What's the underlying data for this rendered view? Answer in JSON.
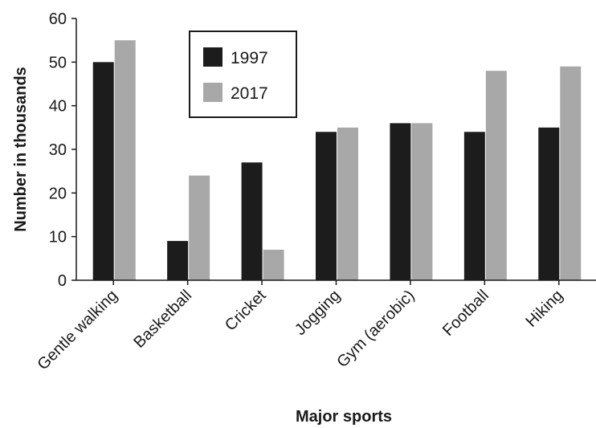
{
  "chart_data": {
    "type": "bar",
    "title": "",
    "xlabel": "Major sports",
    "ylabel": "Number in thousands",
    "categories": [
      "Gentle walking",
      "Basketball",
      "Cricket",
      "Jogging",
      "Gym (aerobic)",
      "Football",
      "Hiking"
    ],
    "series": [
      {
        "name": "1997",
        "color": "#1c1c1c",
        "values": [
          50,
          9,
          27,
          34,
          36,
          34,
          35
        ]
      },
      {
        "name": "2017",
        "color": "#a8a8a8",
        "values": [
          55,
          24,
          7,
          35,
          36,
          48,
          49
        ]
      }
    ],
    "ylim": [
      0,
      60
    ],
    "yticks": [
      "0",
      "10",
      "20",
      "30",
      "40",
      "50",
      "60"
    ],
    "grid": false,
    "legend_position": "top-left"
  }
}
